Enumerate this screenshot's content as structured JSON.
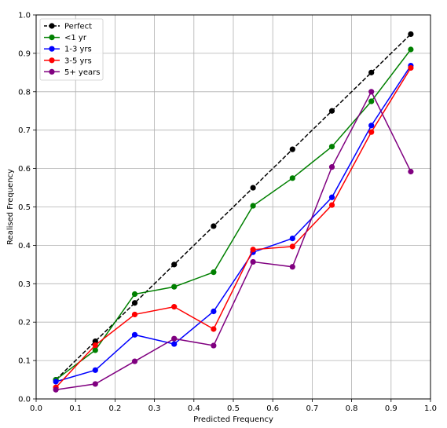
{
  "chart_data": {
    "type": "line",
    "title": "",
    "xlabel": "Predicted Frequency",
    "ylabel": "Realised Frequency",
    "xlim": [
      0.0,
      1.0
    ],
    "ylim": [
      0.0,
      1.0
    ],
    "xticks": [
      "0.0",
      "0.1",
      "0.2",
      "0.3",
      "0.4",
      "0.5",
      "0.6",
      "0.7",
      "0.8",
      "0.9",
      "1.0"
    ],
    "yticks": [
      "0.0",
      "0.1",
      "0.2",
      "0.3",
      "0.4",
      "0.5",
      "0.6",
      "0.7",
      "0.8",
      "0.9",
      "1.0"
    ],
    "grid": true,
    "legend_position": "top-left",
    "x": [
      0.05,
      0.15,
      0.25,
      0.35,
      0.45,
      0.55,
      0.65,
      0.75,
      0.85,
      0.95
    ],
    "series": [
      {
        "name": "Perfect",
        "color": "#000000",
        "dashed": true,
        "values": [
          0.05,
          0.15,
          0.25,
          0.35,
          0.45,
          0.55,
          0.65,
          0.75,
          0.85,
          0.95
        ]
      },
      {
        "name": "<1 yr",
        "color": "#008000",
        "dashed": false,
        "values": [
          0.05,
          0.127,
          0.273,
          0.292,
          0.33,
          0.503,
          0.575,
          0.657,
          0.775,
          0.91
        ]
      },
      {
        "name": "1-3 yrs",
        "color": "#0000ff",
        "dashed": false,
        "values": [
          0.045,
          0.075,
          0.167,
          0.143,
          0.228,
          0.382,
          0.418,
          0.525,
          0.712,
          0.868
        ]
      },
      {
        "name": "3-5 yrs",
        "color": "#ff0000",
        "dashed": false,
        "values": [
          0.03,
          0.14,
          0.22,
          0.24,
          0.182,
          0.389,
          0.397,
          0.505,
          0.695,
          0.862
        ]
      },
      {
        "name": "5+ years",
        "color": "#800080",
        "dashed": false,
        "values": [
          0.024,
          0.039,
          0.098,
          0.157,
          0.139,
          0.357,
          0.344,
          0.604,
          0.8,
          0.592
        ]
      }
    ]
  }
}
